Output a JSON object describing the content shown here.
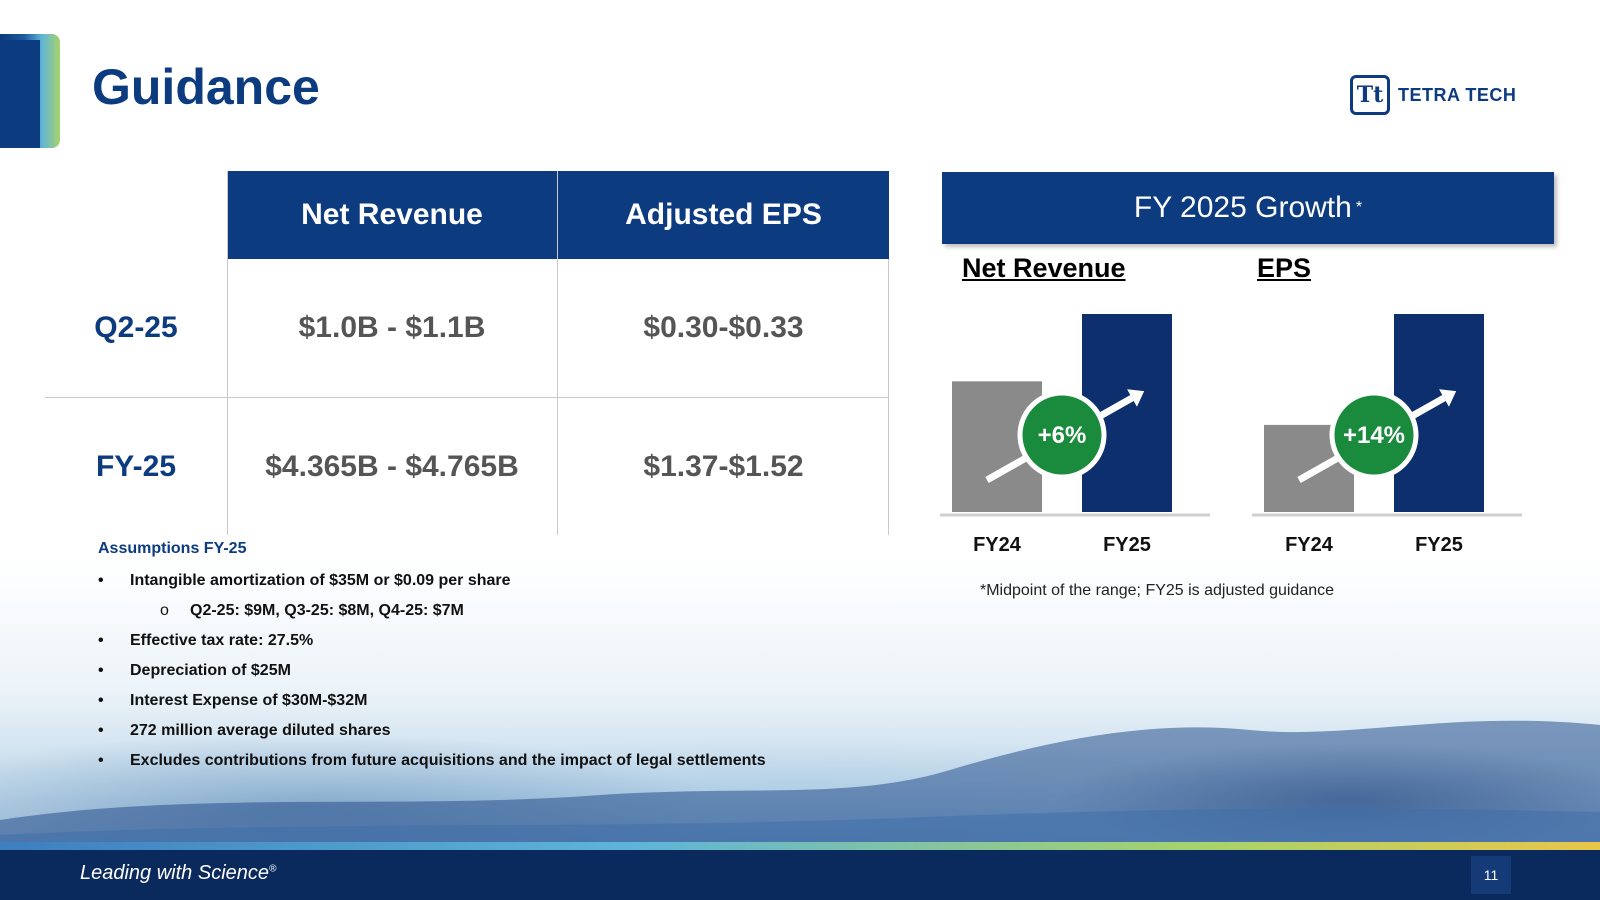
{
  "header": {
    "title": "Guidance",
    "logo_text": "TETRA TECH",
    "logo_mark": "Tt"
  },
  "table": {
    "columns": [
      "Net Revenue",
      "Adjusted EPS"
    ],
    "rows": [
      {
        "label": "Q2-25",
        "net_revenue": "$1.0B - $1.1B",
        "adjusted_eps": "$0.30-$0.33"
      },
      {
        "label": "FY-25",
        "net_revenue": "$4.365B - $4.765B",
        "adjusted_eps": "$1.37-$1.52"
      }
    ]
  },
  "assumptions": {
    "title": "Assumptions FY-25",
    "items": [
      "Intangible amortization of $35M or $0.09 per share",
      "Q2-25: $9M, Q3-25: $8M, Q4-25: $7M",
      "Effective tax rate: 27.5%",
      "Depreciation of $25M",
      "Interest Expense of $30M-$32M",
      "272 million average diluted shares",
      "Excludes contributions from future acquisitions and the impact of legal settlements"
    ]
  },
  "growth": {
    "title": "FY 2025 Growth",
    "title_mark": "*",
    "footnote": "*Midpoint of the range; FY25 is adjusted guidance"
  },
  "chart_data": [
    {
      "type": "bar",
      "title": "Net Revenue",
      "categories": [
        "FY24",
        "FY25"
      ],
      "values": [
        0.66,
        1.0
      ],
      "value_scale": "relative bar height (FY25 = 1.0), no axis printed",
      "annotation": "+6%",
      "colors": [
        "#8a8a8a",
        "#0d2f6e"
      ],
      "badge_color": "#1a8a3c"
    },
    {
      "type": "bar",
      "title": "EPS",
      "categories": [
        "FY24",
        "FY25"
      ],
      "values": [
        0.44,
        1.0
      ],
      "value_scale": "relative bar height (FY25 = 1.0), no axis printed",
      "annotation": "+14%",
      "colors": [
        "#8a8a8a",
        "#0d2f6e"
      ],
      "badge_color": "#1a8a3c"
    }
  ],
  "footer": {
    "tagline": "Leading with Science",
    "tagline_mark": "®",
    "page_number": "11"
  }
}
